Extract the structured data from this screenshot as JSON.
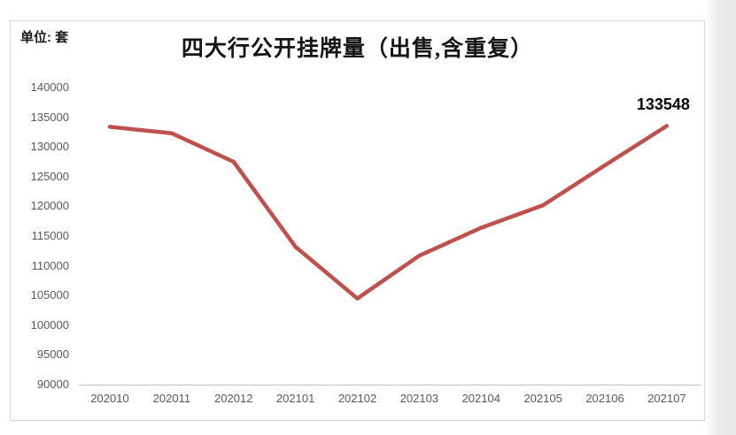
{
  "chart_data": {
    "type": "line",
    "title": "四大行公开挂牌量（出售,含重复）",
    "unit_label": "单位: 套",
    "categories": [
      "202010",
      "202011",
      "202012",
      "202101",
      "202102",
      "202103",
      "202104",
      "202105",
      "202106",
      "202107"
    ],
    "values": [
      133400,
      132300,
      127500,
      113200,
      104500,
      111700,
      116400,
      120200,
      126900,
      133548
    ],
    "end_label": "133548",
    "xlabel": "",
    "ylabel": "",
    "ylim": [
      90000,
      140000
    ],
    "yticks": [
      140000,
      135000,
      130000,
      125000,
      120000,
      115000,
      110000,
      105000,
      100000,
      95000,
      90000
    ],
    "grid": false,
    "legend": "none",
    "line_color": "#c0504d",
    "axis_line_color": "#bfbfbf",
    "tick_label_color": "#595959",
    "title_color": "#151515",
    "end_label_color": "#050505"
  }
}
